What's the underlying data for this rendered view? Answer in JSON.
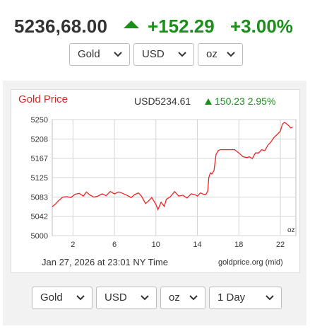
{
  "ticker": {
    "price": "5236,68.00",
    "change": "+152.29",
    "percent": "+3.00%",
    "direction_icon": "up-arrow-icon",
    "up_color": "#1a8f1a"
  },
  "top_selects": [
    {
      "label": "Gold"
    },
    {
      "label": "USD"
    },
    {
      "label": "oz"
    }
  ],
  "chart": {
    "title": "Gold Price",
    "current": "USD5234.61",
    "change": "150.23 2.95%",
    "timestamp": "Jan 27, 2026 at 23:01 NY Time",
    "source": "goldprice.org (mid)",
    "title_color": "#dd2222",
    "line_color": "#ee2222"
  },
  "bottom_selects": [
    {
      "label": "Gold"
    },
    {
      "label": "USD"
    },
    {
      "label": "oz"
    },
    {
      "label": "1 Day"
    }
  ],
  "chart_data": {
    "type": "line",
    "title": "Gold Price",
    "xlabel": "",
    "ylabel": "",
    "unit_label": "oz",
    "xticks": [
      "2",
      "6",
      "10",
      "14",
      "18",
      "22"
    ],
    "yticks": [
      "5250",
      "5208",
      "5167",
      "5125",
      "5083",
      "5042",
      "5000"
    ],
    "xlim": [
      0,
      23.5
    ],
    "ylim": [
      5000,
      5250
    ],
    "grid": true,
    "series": [
      {
        "x": [
          0,
          0.3,
          0.6,
          1,
          1.4,
          1.8,
          2.2,
          2.6,
          3,
          3.3,
          3.6,
          4,
          4.4,
          4.8,
          5.2,
          5.6,
          6,
          6.4,
          6.8,
          7.2,
          7.6,
          8,
          8.3,
          8.6,
          9,
          9.3,
          9.6,
          10,
          10.2,
          10.5,
          10.8,
          11,
          11.4,
          11.8,
          12.2,
          12.6,
          13,
          13.4,
          13.8,
          14,
          14.3,
          14.6,
          14.8,
          15,
          15.1,
          15.25,
          15.4,
          15.6,
          15.8,
          16,
          16.2,
          16.5,
          16.8,
          17.2,
          17.6,
          18,
          18.4,
          18.8,
          19,
          19.3,
          19.6,
          19.9,
          20.2,
          20.5,
          20.8,
          21.1,
          21.4,
          21.7,
          22,
          22.2,
          22.4,
          22.6,
          22.8,
          23,
          23.2
        ],
        "values": [
          5062,
          5068,
          5075,
          5083,
          5084,
          5082,
          5089,
          5091,
          5085,
          5094,
          5088,
          5083,
          5085,
          5090,
          5086,
          5095,
          5090,
          5094,
          5091,
          5087,
          5082,
          5089,
          5092,
          5085,
          5069,
          5075,
          5082,
          5067,
          5056,
          5072,
          5063,
          5078,
          5084,
          5095,
          5085,
          5087,
          5081,
          5090,
          5088,
          5085,
          5092,
          5089,
          5088,
          5096,
          5125,
          5135,
          5133,
          5140,
          5175,
          5183,
          5185,
          5185,
          5185,
          5185,
          5185,
          5178,
          5170,
          5168,
          5170,
          5166,
          5178,
          5178,
          5185,
          5183,
          5195,
          5202,
          5212,
          5218,
          5225,
          5240,
          5244,
          5241,
          5237,
          5232,
          5234
        ]
      }
    ]
  }
}
